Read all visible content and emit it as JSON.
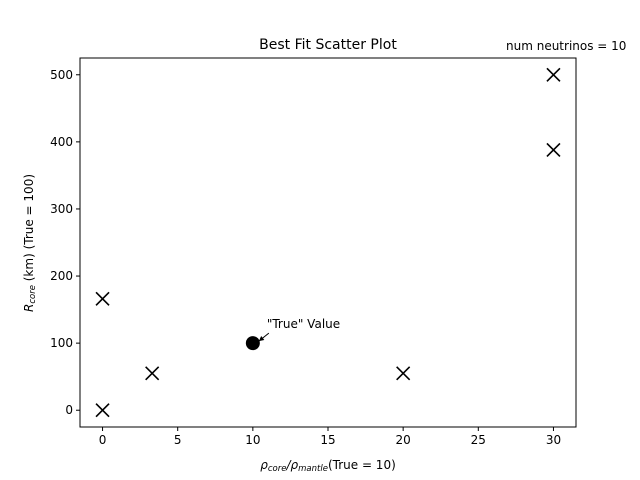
{
  "chart_data": {
    "type": "scatter",
    "title": "Best Fit Scatter Plot",
    "side_note": "num neutrinos = 10",
    "xlabel": {
      "rho": "ρ",
      "core": "core",
      "slash": "/",
      "mantle": "mantle",
      "suffix": "(True = 10)"
    },
    "ylabel": {
      "r": "R",
      "core": "core",
      "suffix": " (km) (True = 100)"
    },
    "xlim": [
      -1.5,
      31.5
    ],
    "ylim": [
      -25,
      525
    ],
    "xticks": [
      0,
      5,
      10,
      15,
      20,
      25,
      30
    ],
    "yticks": [
      0,
      100,
      200,
      300,
      400,
      500
    ],
    "grid": false,
    "series": [
      {
        "marker": "x",
        "color": "#000000",
        "points": [
          {
            "x": 0,
            "y": 0
          },
          {
            "x": 0,
            "y": 166
          },
          {
            "x": 3.3,
            "y": 55
          },
          {
            "x": 20,
            "y": 55
          },
          {
            "x": 30,
            "y": 388
          },
          {
            "x": 30,
            "y": 500
          }
        ]
      },
      {
        "marker": "circle",
        "color": "#000000",
        "points": [
          {
            "x": 10,
            "y": 100
          }
        ]
      }
    ],
    "annotation": {
      "text": "\"True\" Value",
      "x": 10,
      "y": 100
    }
  }
}
